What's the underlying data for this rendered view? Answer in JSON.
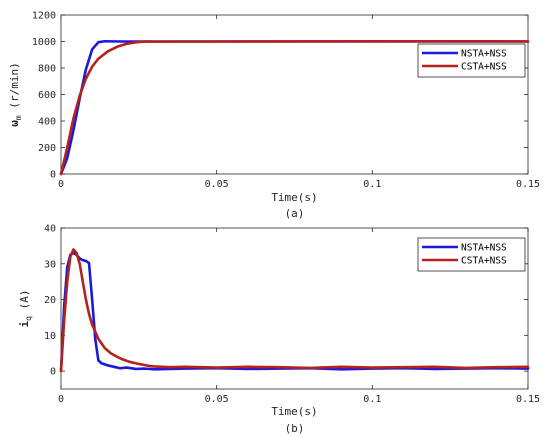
{
  "chart_data": [
    {
      "type": "line",
      "subtitle": "(a)",
      "xlabel": "Time(s)",
      "ylabel": "ω_m (r/min)",
      "ylabel_main": "ω",
      "ylabel_sub": "m",
      "ylabel_unit": "(r/min)",
      "xlim": [
        0,
        0.15
      ],
      "ylim": [
        0,
        1200
      ],
      "xticks": [
        "0",
        "0.05",
        "0.1",
        "0.15"
      ],
      "yticks": [
        "0",
        "200",
        "400",
        "600",
        "800",
        "1000",
        "1200"
      ],
      "grid": false,
      "legend_position": "upper-right",
      "series": [
        {
          "name": "NSTA+NSS",
          "color": "#1a1adb",
          "x": [
            0,
            0.002,
            0.004,
            0.006,
            0.008,
            0.01,
            0.012,
            0.014,
            0.016,
            0.02,
            0.03,
            0.05,
            0.1,
            0.15
          ],
          "y": [
            0,
            120,
            330,
            570,
            790,
            940,
            995,
            1002,
            1001,
            1000,
            1000,
            1000,
            1000,
            1000
          ]
        },
        {
          "name": "CSTA+NSS",
          "color": "#b5211b",
          "x": [
            0,
            0.002,
            0.004,
            0.006,
            0.008,
            0.01,
            0.012,
            0.015,
            0.018,
            0.021,
            0.024,
            0.027,
            0.03,
            0.05,
            0.1,
            0.15
          ],
          "y": [
            0,
            200,
            420,
            590,
            720,
            810,
            870,
            925,
            960,
            982,
            994,
            1000,
            999,
            1000,
            1002,
            1001
          ]
        }
      ]
    },
    {
      "type": "line",
      "subtitle": "(b)",
      "xlabel": "Time(s)",
      "ylabel": "i_q (A)",
      "ylabel_main": "i",
      "ylabel_sub": "q",
      "ylabel_unit": "(A)",
      "xlim": [
        0,
        0.15
      ],
      "ylim": [
        -5,
        40
      ],
      "xticks": [
        "0",
        "0.05",
        "0.1",
        "0.15"
      ],
      "yticks": [
        "0",
        "10",
        "20",
        "30",
        "40"
      ],
      "grid": false,
      "legend_position": "upper-right",
      "series": [
        {
          "name": "NSTA+NSS",
          "color": "#1a1adb",
          "x": [
            0,
            0.001,
            0.002,
            0.003,
            0.004,
            0.005,
            0.006,
            0.007,
            0.008,
            0.009,
            0.01,
            0.011,
            0.012,
            0.013,
            0.015,
            0.017,
            0.019,
            0.021,
            0.024,
            0.027,
            0.03,
            0.035,
            0.04,
            0.05,
            0.06,
            0.07,
            0.08,
            0.09,
            0.1,
            0.11,
            0.12,
            0.13,
            0.14,
            0.15
          ],
          "y": [
            0,
            18,
            29,
            32.5,
            33,
            32.5,
            31.5,
            31,
            30.8,
            30.2,
            20,
            9,
            3,
            2.2,
            1.6,
            1.2,
            0.8,
            1.0,
            0.6,
            0.7,
            0.5,
            0.6,
            0.7,
            0.8,
            0.6,
            0.7,
            0.8,
            0.5,
            0.7,
            0.8,
            0.6,
            0.7,
            0.8,
            0.7
          ]
        },
        {
          "name": "CSTA+NSS",
          "color": "#b5211b",
          "x": [
            0,
            0.001,
            0.002,
            0.003,
            0.004,
            0.005,
            0.006,
            0.007,
            0.008,
            0.009,
            0.01,
            0.011,
            0.012,
            0.014,
            0.016,
            0.018,
            0.02,
            0.022,
            0.025,
            0.028,
            0.03,
            0.035,
            0.04,
            0.05,
            0.06,
            0.07,
            0.08,
            0.09,
            0.1,
            0.11,
            0.12,
            0.13,
            0.14,
            0.15
          ],
          "y": [
            0,
            14,
            25,
            32,
            34,
            33,
            30,
            25,
            20,
            16,
            13,
            11,
            9,
            6.5,
            5,
            4,
            3.2,
            2.6,
            2,
            1.5,
            1.3,
            1.1,
            1.2,
            1.0,
            1.2,
            1.1,
            0.9,
            1.2,
            1.0,
            1.1,
            1.2,
            0.9,
            1.1,
            1.2
          ]
        }
      ]
    }
  ]
}
